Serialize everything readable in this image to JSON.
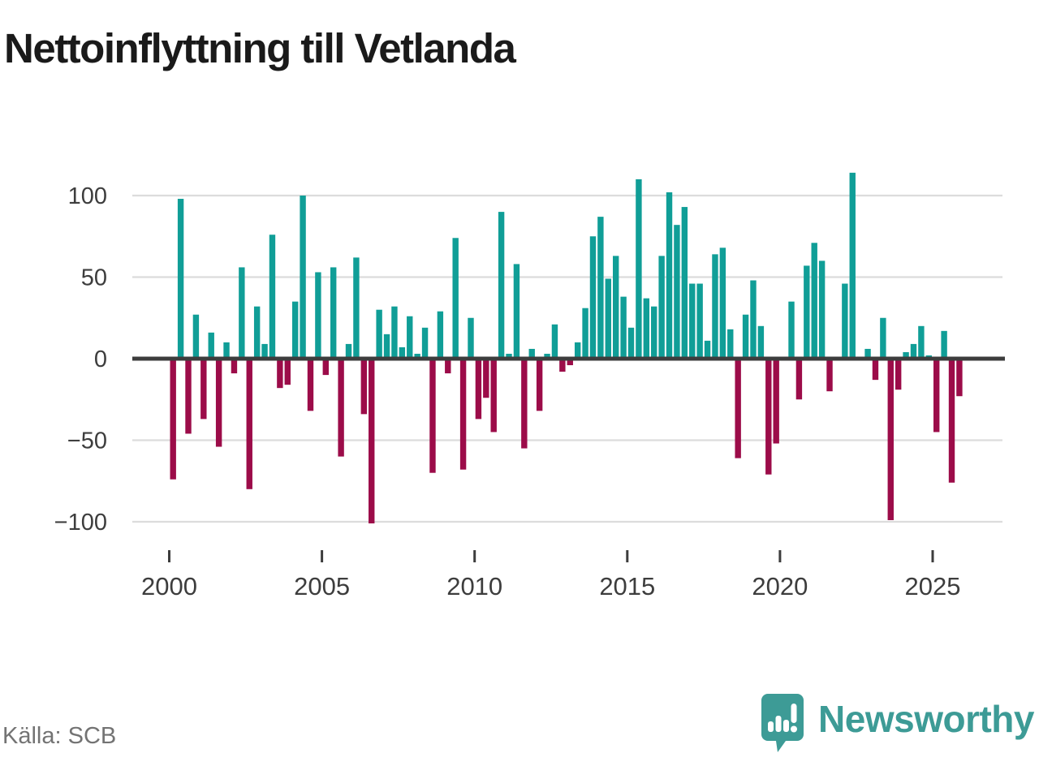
{
  "title": "Nettoinflyttning till Vetlanda",
  "source": "Källa: SCB",
  "branding": {
    "name": "Newsworthy",
    "icon": "speech-bubble-bar-chart-icon"
  },
  "colors": {
    "positive_bar": "#109e97",
    "negative_bar": "#9c0c49",
    "grid_line": "#dcdcdc",
    "zero_line": "#3d3d3d",
    "axis_text": "#3d3d3d",
    "title_text": "#1a1a1a",
    "source_text": "#737373",
    "brand_teal": "#3d9b96"
  },
  "chart_data": {
    "type": "bar",
    "frequency": "quarterly",
    "x_start": {
      "year": 2000,
      "quarter": 1
    },
    "x_end": {
      "year": 2025,
      "quarter": 4
    },
    "x_tick_years": [
      2000,
      2005,
      2010,
      2015,
      2020,
      2025
    ],
    "x_tick_labels": [
      "2000",
      "2005",
      "2010",
      "2015",
      "2020",
      "2025"
    ],
    "y_ticks": [
      100,
      50,
      0,
      -50,
      -100
    ],
    "y_tick_labels": [
      "100",
      "50",
      "0",
      "−50",
      "−100"
    ],
    "ylim": [
      -115,
      120
    ],
    "grid": true,
    "legend": "none",
    "title": "Nettoinflyttning till Vetlanda",
    "values": [
      -74,
      98,
      -46,
      27,
      -37,
      16,
      -54,
      10,
      -9,
      56,
      -80,
      32,
      9,
      76,
      -18,
      -16,
      35,
      100,
      -32,
      53,
      -10,
      56,
      -60,
      9,
      62,
      -34,
      -101,
      30,
      15,
      32,
      7,
      26,
      3,
      19,
      -70,
      29,
      -9,
      74,
      -68,
      25,
      -37,
      -24,
      -45,
      90,
      3,
      58,
      -55,
      6,
      -32,
      3,
      21,
      -8,
      -4,
      10,
      31,
      75,
      87,
      49,
      63,
      38,
      19,
      110,
      37,
      32,
      63,
      102,
      82,
      93,
      46,
      46,
      11,
      64,
      68,
      18,
      -61,
      27,
      48,
      20,
      -71,
      -52,
      0,
      35,
      -25,
      57,
      71,
      60,
      -20,
      0,
      46,
      114,
      0,
      6,
      -13,
      25,
      -99,
      -19,
      4,
      9,
      20,
      2,
      -45,
      17,
      -76,
      -23
    ]
  }
}
